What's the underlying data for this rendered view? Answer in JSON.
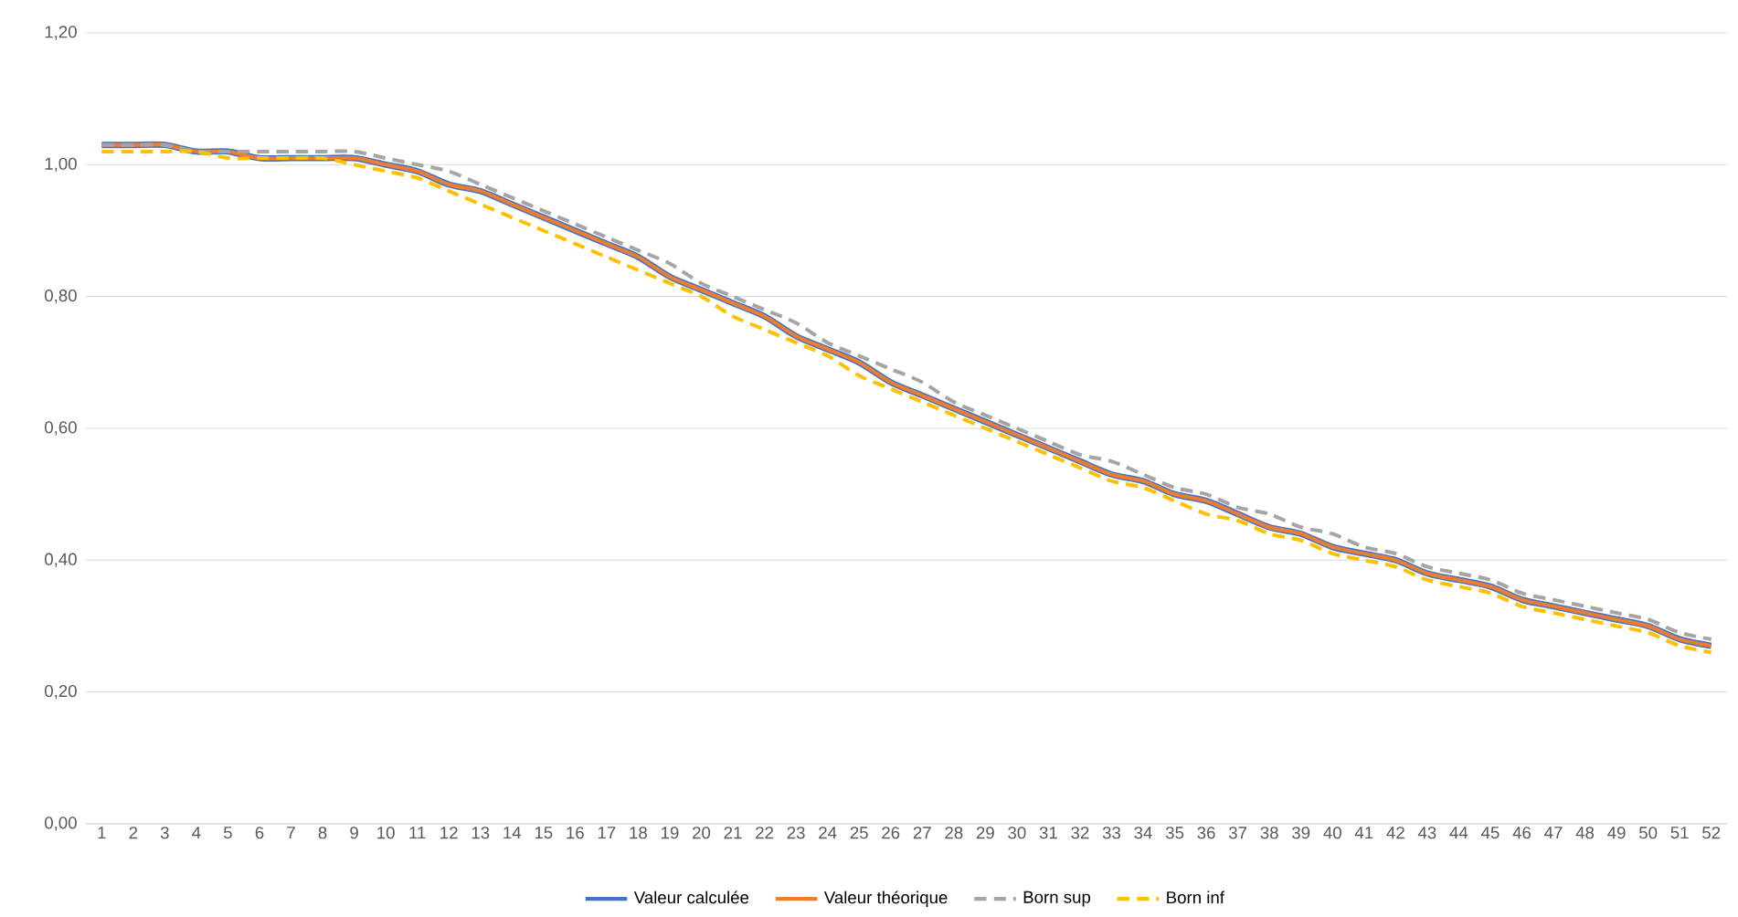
{
  "chart_data": {
    "type": "line",
    "categories": [
      "1",
      "2",
      "3",
      "4",
      "5",
      "6",
      "7",
      "8",
      "9",
      "10",
      "11",
      "12",
      "13",
      "14",
      "15",
      "16",
      "17",
      "18",
      "19",
      "20",
      "21",
      "22",
      "23",
      "24",
      "25",
      "26",
      "27",
      "28",
      "29",
      "30",
      "31",
      "32",
      "33",
      "34",
      "35",
      "36",
      "37",
      "38",
      "39",
      "40",
      "41",
      "42",
      "43",
      "44",
      "45",
      "46",
      "47",
      "48",
      "49",
      "50",
      "51",
      "52"
    ],
    "series": [
      {
        "name": "Valeur calculée",
        "color": "#4472c4",
        "line_style": "solid",
        "values": [
          1.03,
          1.03,
          1.03,
          1.02,
          1.02,
          1.01,
          1.01,
          1.01,
          1.01,
          1.0,
          0.99,
          0.97,
          0.96,
          0.94,
          0.92,
          0.9,
          0.88,
          0.86,
          0.83,
          0.81,
          0.79,
          0.77,
          0.74,
          0.72,
          0.7,
          0.67,
          0.65,
          0.63,
          0.61,
          0.59,
          0.57,
          0.55,
          0.53,
          0.52,
          0.5,
          0.49,
          0.47,
          0.45,
          0.44,
          0.42,
          0.41,
          0.4,
          0.38,
          0.37,
          0.36,
          0.34,
          0.33,
          0.32,
          0.31,
          0.3,
          0.28,
          0.27
        ]
      },
      {
        "name": "Valeur théorique",
        "color": "#ed7d31",
        "line_style": "solid",
        "values": [
          1.03,
          1.03,
          1.03,
          1.02,
          1.02,
          1.01,
          1.01,
          1.01,
          1.01,
          1.0,
          0.99,
          0.97,
          0.96,
          0.94,
          0.92,
          0.9,
          0.88,
          0.86,
          0.83,
          0.81,
          0.79,
          0.77,
          0.74,
          0.72,
          0.7,
          0.67,
          0.65,
          0.63,
          0.61,
          0.59,
          0.57,
          0.55,
          0.53,
          0.52,
          0.5,
          0.49,
          0.47,
          0.45,
          0.44,
          0.42,
          0.41,
          0.4,
          0.38,
          0.37,
          0.36,
          0.34,
          0.33,
          0.32,
          0.31,
          0.3,
          0.28,
          0.27
        ]
      },
      {
        "name": "Born sup",
        "color": "#a5a5a5",
        "line_style": "dashed",
        "values": [
          1.03,
          1.03,
          1.03,
          1.02,
          1.02,
          1.02,
          1.02,
          1.02,
          1.02,
          1.01,
          1.0,
          0.99,
          0.97,
          0.95,
          0.93,
          0.91,
          0.89,
          0.87,
          0.85,
          0.82,
          0.8,
          0.78,
          0.76,
          0.73,
          0.71,
          0.69,
          0.67,
          0.64,
          0.62,
          0.6,
          0.58,
          0.56,
          0.55,
          0.53,
          0.51,
          0.5,
          0.48,
          0.47,
          0.45,
          0.44,
          0.42,
          0.41,
          0.39,
          0.38,
          0.37,
          0.35,
          0.34,
          0.33,
          0.32,
          0.31,
          0.29,
          0.28
        ]
      },
      {
        "name": "Born inf",
        "color": "#ffc000",
        "line_style": "dashed",
        "values": [
          1.02,
          1.02,
          1.02,
          1.02,
          1.01,
          1.01,
          1.01,
          1.01,
          1.0,
          0.99,
          0.98,
          0.96,
          0.94,
          0.92,
          0.9,
          0.88,
          0.86,
          0.84,
          0.82,
          0.8,
          0.77,
          0.75,
          0.73,
          0.71,
          0.68,
          0.66,
          0.64,
          0.62,
          0.6,
          0.58,
          0.56,
          0.54,
          0.52,
          0.51,
          0.49,
          0.47,
          0.46,
          0.44,
          0.43,
          0.41,
          0.4,
          0.39,
          0.37,
          0.36,
          0.35,
          0.33,
          0.32,
          0.31,
          0.3,
          0.29,
          0.27,
          0.26
        ]
      }
    ],
    "ylim": [
      0,
      1.2
    ],
    "yticks": [
      {
        "value": 0,
        "label": "0,00"
      },
      {
        "value": 0.2,
        "label": "0,20"
      },
      {
        "value": 0.4,
        "label": "0,40"
      },
      {
        "value": 0.6,
        "label": "0,60"
      },
      {
        "value": 0.8,
        "label": "0,80"
      },
      {
        "value": 1.0,
        "label": "1,00"
      },
      {
        "value": 1.2,
        "label": "1,20"
      }
    ],
    "grid": "y",
    "legend": "bottom",
    "marker": "none"
  }
}
